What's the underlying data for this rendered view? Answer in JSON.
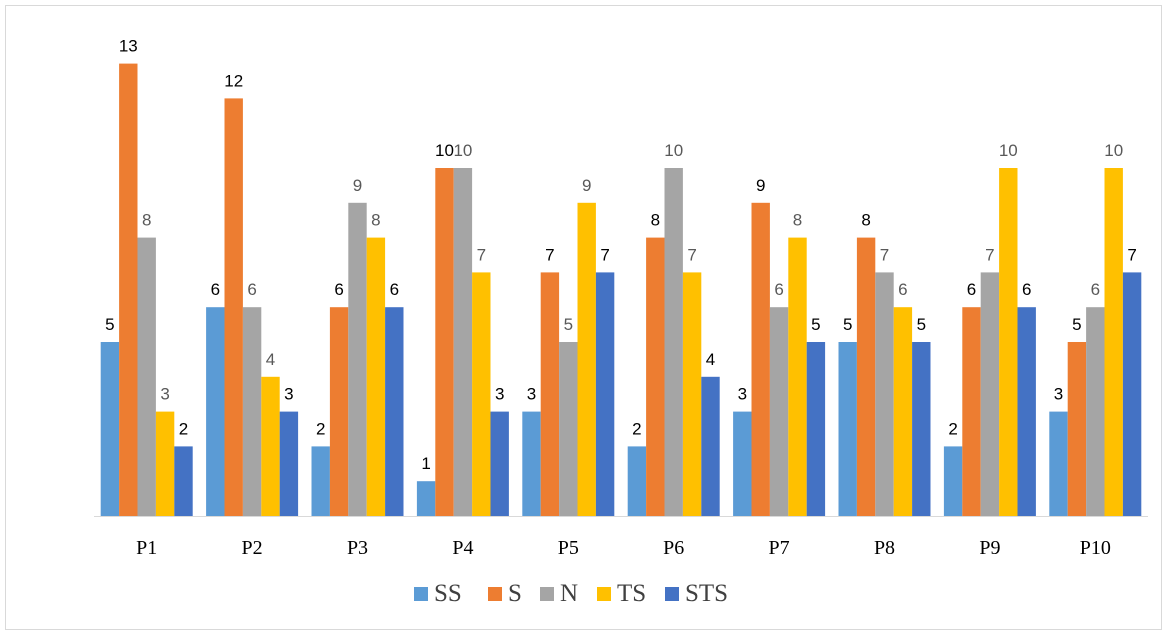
{
  "chart_data": {
    "type": "bar",
    "categories": [
      "P1",
      "P2",
      "P3",
      "P4",
      "P5",
      "P6",
      "P7",
      "P8",
      "P9",
      "P10"
    ],
    "series": [
      {
        "name": "SS",
        "color": "#5b9bd5",
        "values": [
          5,
          6,
          2,
          1,
          3,
          2,
          3,
          5,
          2,
          3
        ]
      },
      {
        "name": "S",
        "color": "#ed7d31",
        "values": [
          13,
          12,
          6,
          10,
          7,
          8,
          9,
          8,
          6,
          5
        ]
      },
      {
        "name": "N",
        "color": "#a5a5a5",
        "values": [
          8,
          6,
          9,
          10,
          5,
          10,
          6,
          7,
          7,
          6
        ]
      },
      {
        "name": "TS",
        "color": "#ffc000",
        "values": [
          3,
          4,
          8,
          7,
          9,
          7,
          8,
          6,
          10,
          10
        ]
      },
      {
        "name": "STS",
        "color": "#4472c4",
        "values": [
          2,
          3,
          6,
          3,
          7,
          4,
          5,
          5,
          6,
          7
        ]
      }
    ],
    "ylim": [
      0,
      14
    ],
    "grid": false,
    "legend_position": "bottom",
    "title": "",
    "xlabel": "",
    "ylabel": ""
  }
}
